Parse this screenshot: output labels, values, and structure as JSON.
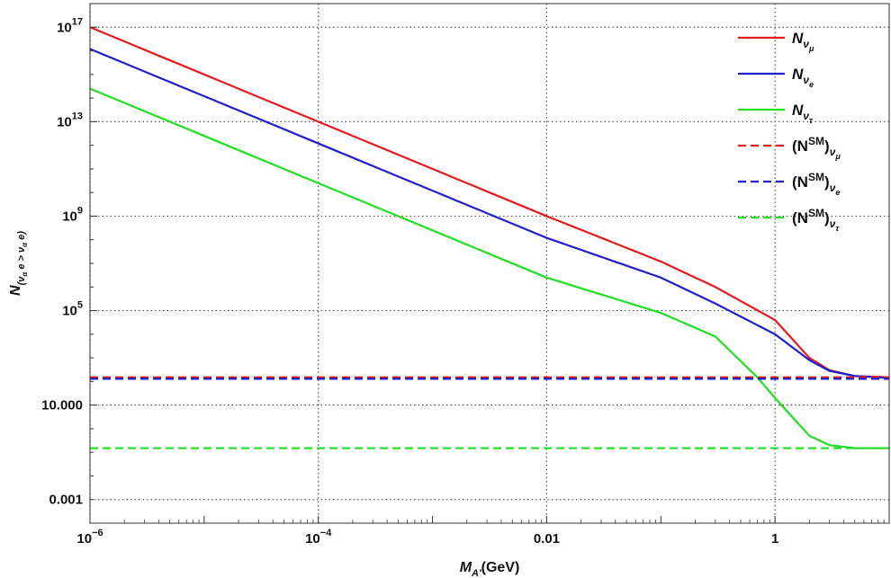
{
  "chart_data": {
    "type": "line",
    "xscale": "log",
    "yscale": "log",
    "xlim": [
      1e-06,
      10
    ],
    "ylim": [
      0.0001,
      1e+18
    ],
    "grid": true,
    "legend_position": "top-right",
    "xlabel": {
      "main": "M",
      "sub": "A'",
      "suffix": "(GeV)"
    },
    "ylabel": {
      "main": "N",
      "sub": "(ν",
      "subsub": "α",
      "sub2": " e > ν",
      "subsub2": "α",
      "sub3": " e)"
    },
    "x_ticks": [
      {
        "value": 1e-06,
        "base": "10",
        "exp": "−6"
      },
      {
        "value": 0.0001,
        "base": "10",
        "exp": "−4"
      },
      {
        "value": 0.01,
        "base": "0.01",
        "exp": ""
      },
      {
        "value": 1,
        "base": "1",
        "exp": ""
      }
    ],
    "y_ticks": [
      {
        "value": 0.001,
        "base": "0.001",
        "exp": ""
      },
      {
        "value": 10,
        "base": "10.000",
        "exp": ""
      },
      {
        "value": 100000.0,
        "base": "10",
        "exp": "5"
      },
      {
        "value": 1000000000.0,
        "base": "10",
        "exp": "9"
      },
      {
        "value": 10000000000000.0,
        "base": "10",
        "exp": "13"
      },
      {
        "value": 1e+17,
        "base": "10",
        "exp": "17"
      }
    ],
    "series": [
      {
        "name": "N",
        "sub": "ν",
        "subsub": "μ",
        "sm": false,
        "color": "#e41a1c",
        "dashed": false,
        "points": [
          [
            1e-06,
            1e+17
          ],
          [
            0.0001,
            10000000000000.0
          ],
          [
            0.01,
            1000000000.0
          ],
          [
            0.1,
            12000000.0
          ],
          [
            0.3,
            1000000.0
          ],
          [
            1,
            40000.0
          ],
          [
            2,
            1000.0
          ],
          [
            3,
            300
          ],
          [
            5,
            170
          ],
          [
            10,
            150
          ]
        ]
      },
      {
        "name": "N",
        "sub": "ν",
        "subsub": "e",
        "sm": false,
        "color": "#1f1fcc",
        "dashed": false,
        "points": [
          [
            1e-06,
            1.2e+16
          ],
          [
            0.0001,
            1200000000000.0
          ],
          [
            0.01,
            120000000.0
          ],
          [
            0.1,
            2500000.0
          ],
          [
            0.3,
            200000.0
          ],
          [
            1,
            10000.0
          ],
          [
            2,
            800
          ],
          [
            3,
            280
          ],
          [
            5,
            170
          ],
          [
            10,
            140
          ]
        ]
      },
      {
        "name": "N",
        "sub": "ν",
        "subsub": "τ",
        "sm": false,
        "color": "#22dd22",
        "dashed": false,
        "points": [
          [
            1e-06,
            250000000000000.0
          ],
          [
            0.0001,
            25000000000.0
          ],
          [
            0.01,
            2500000.0
          ],
          [
            0.1,
            80000.0
          ],
          [
            0.3,
            8000.0
          ],
          [
            0.7,
            150
          ],
          [
            1,
            20
          ],
          [
            2,
            0.5
          ],
          [
            3,
            0.2
          ],
          [
            5,
            0.15
          ],
          [
            10,
            0.15
          ]
        ]
      },
      {
        "name": "(N",
        "sup": "SM",
        "close": ")",
        "sub": "ν",
        "subsub": "μ",
        "sm": true,
        "color": "#e41a1c",
        "dashed": true,
        "points": [
          [
            1e-06,
            150
          ],
          [
            10,
            150
          ]
        ]
      },
      {
        "name": "(N",
        "sup": "SM",
        "close": ")",
        "sub": "ν",
        "subsub": "e",
        "sm": true,
        "color": "#1f1fcc",
        "dashed": true,
        "points": [
          [
            1e-06,
            130
          ],
          [
            10,
            130
          ]
        ]
      },
      {
        "name": "(N",
        "sup": "SM",
        "close": ")",
        "sub": "ν",
        "subsub": "τ",
        "sm": true,
        "color": "#22dd22",
        "dashed": true,
        "points": [
          [
            1e-06,
            0.15
          ],
          [
            10,
            0.15
          ]
        ]
      }
    ]
  }
}
